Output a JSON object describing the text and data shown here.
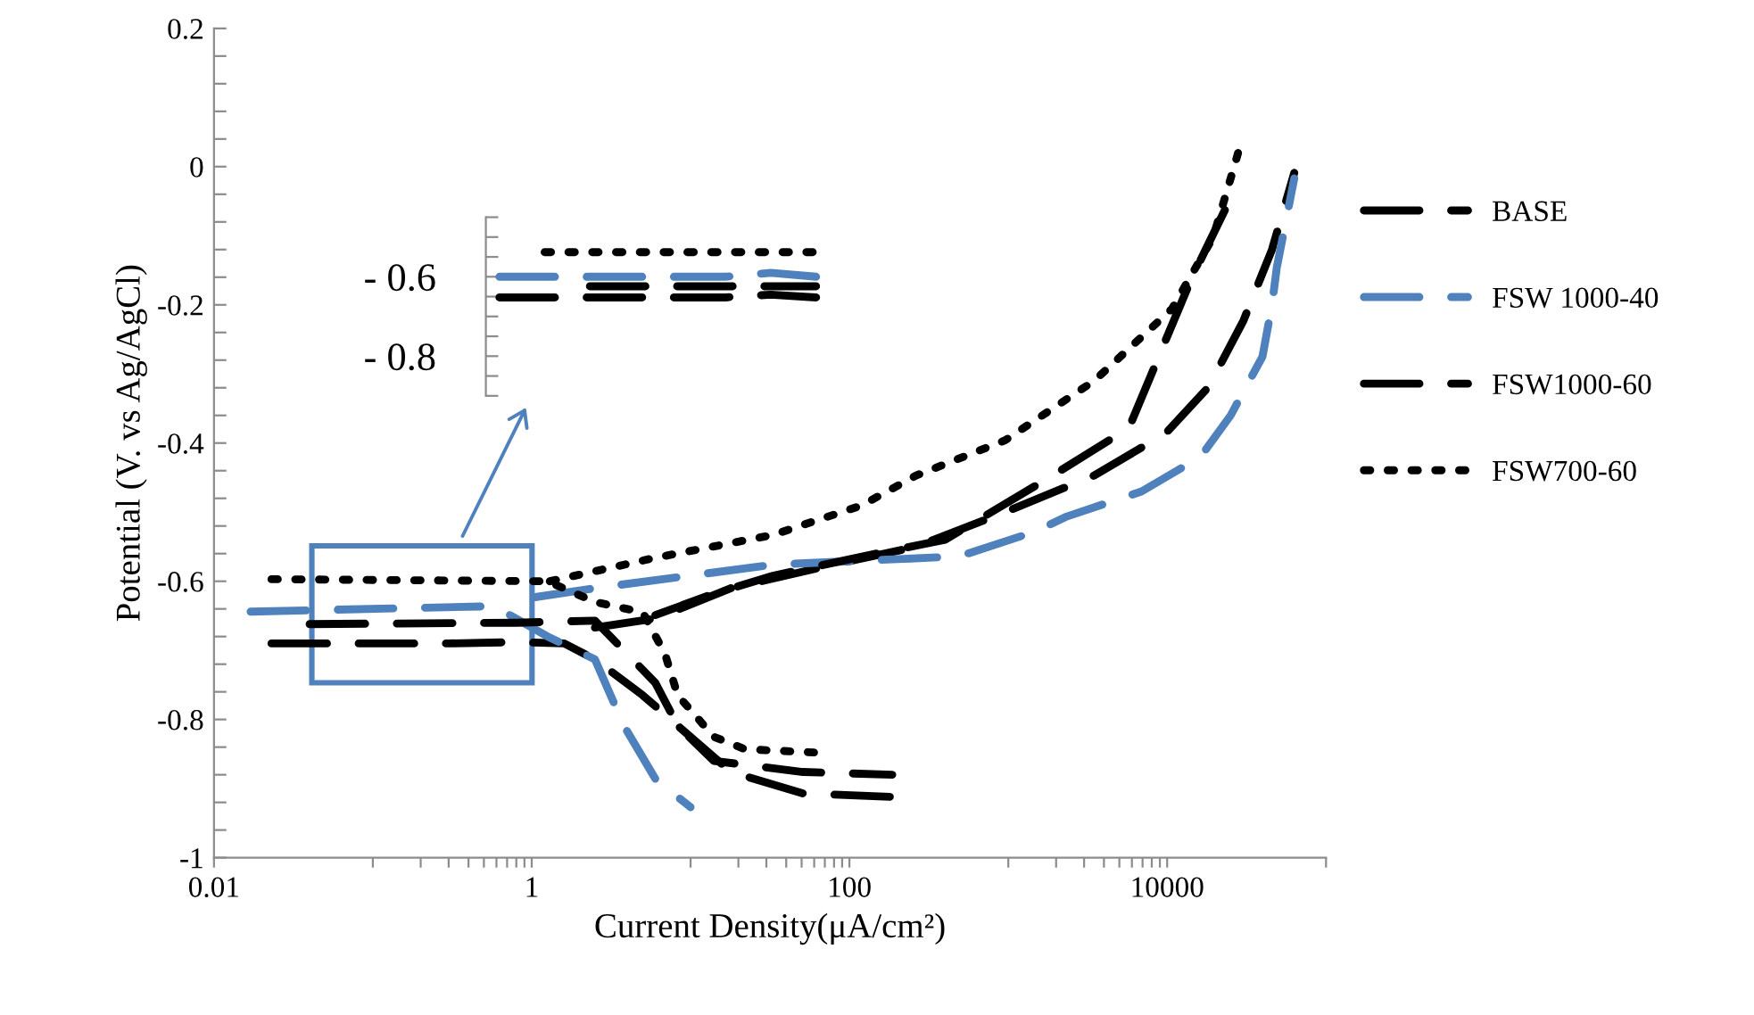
{
  "chart_data": [
    {
      "type": "line",
      "xlabel": "Current Density(μA/cm²)",
      "ylabel": "Potential (V. vs Ag/AgCl)",
      "log": "x",
      "grid": false,
      "legend": "right",
      "xlim": [
        0.01,
        100000
      ],
      "ylim": [
        -1,
        0.2
      ],
      "xticks": [
        0.01,
        {
          "value": 0.1,
          "label": null
        },
        {
          "value": 0.2,
          "label": null
        },
        {
          "value": 0.3,
          "label": null
        },
        {
          "value": 0.4,
          "label": null
        },
        {
          "value": 0.5,
          "label": null
        },
        {
          "value": 0.6,
          "label": null
        },
        {
          "value": 0.7,
          "label": null
        },
        {
          "value": 0.8,
          "label": null
        },
        {
          "value": 0.9,
          "label": null
        },
        1,
        {
          "value": 10,
          "label": null
        },
        {
          "value": 20,
          "label": null
        },
        {
          "value": 30,
          "label": null
        },
        {
          "value": 40,
          "label": null
        },
        {
          "value": 50,
          "label": null
        },
        {
          "value": 60,
          "label": null
        },
        {
          "value": 70,
          "label": null
        },
        {
          "value": 80,
          "label": null
        },
        {
          "value": 90,
          "label": null
        },
        100,
        {
          "value": 1000,
          "label": null
        },
        {
          "value": 2000,
          "label": null
        },
        {
          "value": 3000,
          "label": null
        },
        {
          "value": 4000,
          "label": null
        },
        {
          "value": 5000,
          "label": null
        },
        {
          "value": 6000,
          "label": null
        },
        {
          "value": 7000,
          "label": null
        },
        {
          "value": 8000,
          "label": null
        },
        {
          "value": 9000,
          "label": null
        },
        10000,
        {
          "value": 100000,
          "label": null
        }
      ],
      "yticks": [
        -1,
        {
          "value": -0.96,
          "label": null
        },
        {
          "value": -0.92,
          "label": null
        },
        {
          "value": -0.88,
          "label": null
        },
        {
          "value": -0.84,
          "label": null
        },
        -0.8,
        {
          "value": -0.76,
          "label": null
        },
        {
          "value": -0.72,
          "label": null
        },
        {
          "value": -0.68,
          "label": null
        },
        {
          "value": -0.64,
          "label": null
        },
        -0.6,
        {
          "value": -0.56,
          "label": null
        },
        {
          "value": -0.52,
          "label": null
        },
        {
          "value": -0.48,
          "label": null
        },
        {
          "value": -0.44,
          "label": null
        },
        -0.4,
        {
          "value": -0.36,
          "label": null
        },
        {
          "value": -0.32,
          "label": null
        },
        {
          "value": -0.28,
          "label": null
        },
        {
          "value": -0.24,
          "label": null
        },
        -0.2,
        {
          "value": -0.16,
          "label": null
        },
        {
          "value": -0.12,
          "label": null
        },
        {
          "value": -0.08,
          "label": null
        },
        {
          "value": -0.04,
          "label": null
        },
        0,
        {
          "value": 0.04,
          "label": null
        },
        {
          "value": 0.08,
          "label": null
        },
        {
          "value": 0.12,
          "label": null
        },
        {
          "value": 0.16,
          "label": null
        },
        0.2
      ],
      "series": [
        {
          "name": "BASE",
          "color": "#000000",
          "line_style": "dashed",
          "x": [
            0.023,
            0.3,
            0.8,
            1.6,
            2.5,
            5,
            9.1,
            18,
            51,
            186,
            null,
            2.5,
            6,
            18,
            79,
            263,
            955,
            3470,
            9770,
            18200,
            30200,
            45700,
            63100
          ],
          "values": [
            -0.69,
            -0.69,
            -0.688,
            -0.69,
            -0.713,
            -0.765,
            -0.817,
            -0.876,
            -0.907,
            -0.912,
            null,
            -0.667,
            -0.654,
            -0.61,
            -0.576,
            -0.55,
            -0.5,
            -0.447,
            -0.386,
            -0.319,
            -0.223,
            -0.12,
            -0.009
          ]
        },
        {
          "name": "FSW 1000-40",
          "color": "#4f81bd",
          "line_style": "dashed",
          "x": [
            0.017,
            0.58,
            1.26,
            2.5,
            3.8,
            6,
            10,
            null,
            1.05,
            2.5,
            33,
            490,
            1480,
            2290,
            6900,
            16200,
            25100,
            39800,
            45700,
            49000,
            63100
          ],
          "values": [
            -0.644,
            -0.636,
            -0.68,
            -0.713,
            -0.809,
            -0.886,
            -0.927,
            null,
            -0.623,
            -0.61,
            -0.576,
            -0.564,
            -0.528,
            -0.507,
            -0.47,
            -0.42,
            -0.36,
            -0.275,
            -0.2,
            -0.146,
            -0.017
          ]
        },
        {
          "name": "FSW1000-60",
          "color": "#000000",
          "line_style": "dashed",
          "x": [
            0.04,
            0.8,
            2.5,
            6,
            8.3,
            14,
            51,
            186,
            null,
            6,
            14,
            33,
            155,
            400,
            1900,
            5750,
            14100,
            23400,
            25100
          ],
          "values": [
            -0.662,
            -0.66,
            -0.657,
            -0.747,
            -0.809,
            -0.86,
            -0.876,
            -0.88,
            null,
            -0.649,
            -0.618,
            -0.592,
            -0.559,
            -0.54,
            -0.447,
            -0.378,
            -0.164,
            -0.06,
            -0.04
          ]
        },
        {
          "name": "FSW700-60",
          "color": "#000000",
          "line_style": "dotted",
          "x": [
            0.023,
            1.26,
            2.5,
            5,
            6.9,
            8.3,
            14,
            22,
            63,
            null,
            1.3,
            6,
            33,
            120,
            263,
            955,
            3470,
            10700,
            19500,
            25100,
            28800
          ],
          "values": [
            -0.597,
            -0.6,
            -0.63,
            -0.645,
            -0.705,
            -0.765,
            -0.825,
            -0.843,
            -0.848,
            null,
            -0.6,
            -0.566,
            -0.533,
            -0.49,
            -0.447,
            -0.396,
            -0.31,
            -0.206,
            -0.102,
            -0.017,
            0.03
          ]
        }
      ]
    },
    {
      "type": "line",
      "tick_labels": "y",
      "grid": false,
      "legend": false,
      "categories": [
        null,
        null,
        null,
        null,
        null,
        null,
        null,
        null
      ],
      "ylim": [
        -0.9,
        -0.45
      ],
      "yticks": [
        {
          "value": -0.9,
          "label": null
        },
        {
          "value": -0.85,
          "label": null
        },
        {
          "value": -0.8,
          "label": "- 0.8"
        },
        {
          "value": -0.75,
          "label": null
        },
        {
          "value": -0.7,
          "label": null
        },
        {
          "value": -0.65,
          "label": null
        },
        {
          "value": -0.6,
          "label": "- 0.6"
        },
        {
          "value": -0.55,
          "label": null
        },
        {
          "value": -0.5,
          "label": null
        },
        {
          "value": -0.45,
          "label": null
        }
      ],
      "series": [
        {
          "color": "#000000",
          "line_style": "dotted",
          "values": [
            null,
            -0.538,
            -0.538,
            -0.538,
            -0.538,
            -0.538,
            -0.538,
            -0.538
          ]
        },
        {
          "color": "#4f81bd",
          "line_style": "dashed",
          "values": [
            -0.6,
            -0.6,
            -0.6,
            -0.6,
            -0.6,
            -0.6,
            -0.59,
            -0.6
          ]
        },
        {
          "color": "#000000",
          "line_style": "dashed",
          "values": [
            null,
            null,
            -0.624,
            -0.624,
            -0.624,
            -0.624,
            -0.624,
            -0.624
          ]
        },
        {
          "color": "#000000",
          "line_style": "dashed",
          "values": [
            -0.652,
            -0.652,
            -0.652,
            -0.652,
            -0.652,
            -0.652,
            -0.645,
            -0.652
          ]
        }
      ]
    }
  ]
}
